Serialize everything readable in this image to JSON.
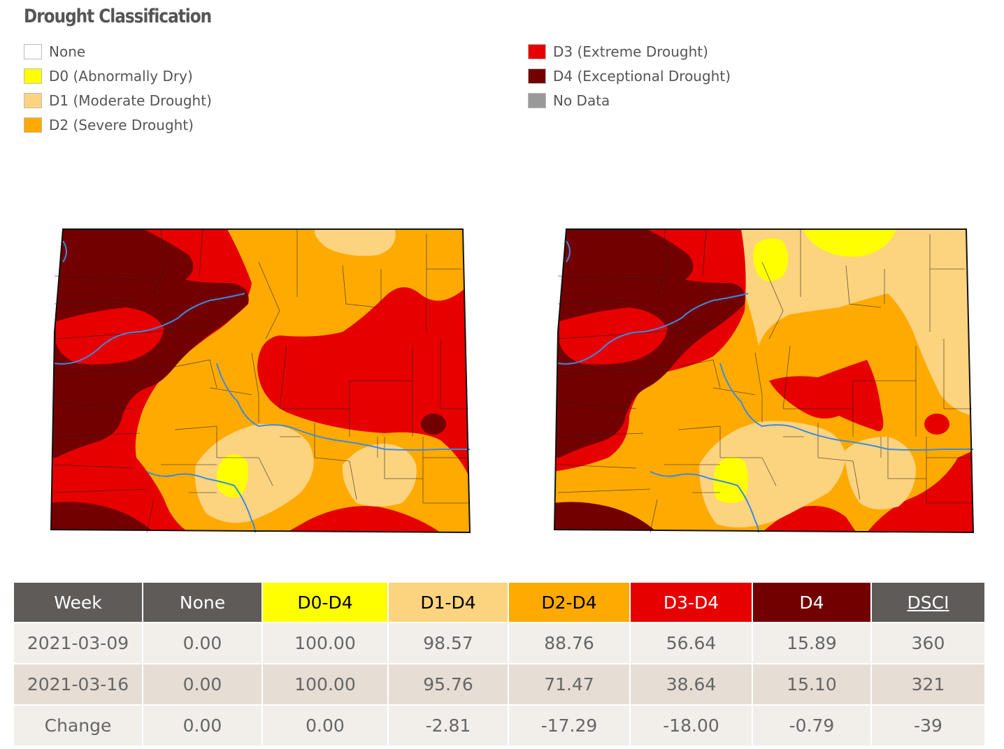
{
  "legend": {
    "title": "Drought Classification",
    "items": [
      {
        "label": "None",
        "color": "#ffffff"
      },
      {
        "label": "D0 (Abnormally Dry)",
        "color": "#ffff00"
      },
      {
        "label": "D1 (Moderate Drought)",
        "color": "#fcd37f"
      },
      {
        "label": "D2 (Severe Drought)",
        "color": "#ffaa00"
      },
      {
        "label": "D3 (Extreme Drought)",
        "color": "#e60000"
      },
      {
        "label": "D4 (Exceptional Drought)",
        "color": "#730000"
      },
      {
        "label": "No Data",
        "color": "#999999"
      }
    ]
  },
  "table": {
    "headers": [
      {
        "label": "Week",
        "bg": "#5e5b58",
        "fg": "#ffffff"
      },
      {
        "label": "None",
        "bg": "#5e5b58",
        "fg": "#ffffff"
      },
      {
        "label": "D0-D4",
        "bg": "#ffff00",
        "fg": "#000000"
      },
      {
        "label": "D1-D4",
        "bg": "#fcd37f",
        "fg": "#000000"
      },
      {
        "label": "D2-D4",
        "bg": "#ffaa00",
        "fg": "#000000"
      },
      {
        "label": "D3-D4",
        "bg": "#e60000",
        "fg": "#ffffff"
      },
      {
        "label": "D4",
        "bg": "#730000",
        "fg": "#ffffff"
      },
      {
        "label": "DSCI",
        "bg": "#5e5b58",
        "fg": "#ffffff",
        "link": true
      }
    ],
    "rows": [
      [
        "2021-03-09",
        "0.00",
        "100.00",
        "98.57",
        "88.76",
        "56.64",
        "15.89",
        "360"
      ],
      [
        "2021-03-16",
        "0.00",
        "100.00",
        "95.76",
        "71.47",
        "38.64",
        "15.10",
        "321"
      ],
      [
        "Change",
        "0.00",
        "0.00",
        "-2.81",
        "-17.29",
        "-18.00",
        "-0.79",
        "-39"
      ]
    ]
  },
  "maps": [
    {
      "name": "drought-map-2021-03-09",
      "week": "2021-03-09"
    },
    {
      "name": "drought-map-2021-03-16",
      "week": "2021-03-16"
    }
  ]
}
